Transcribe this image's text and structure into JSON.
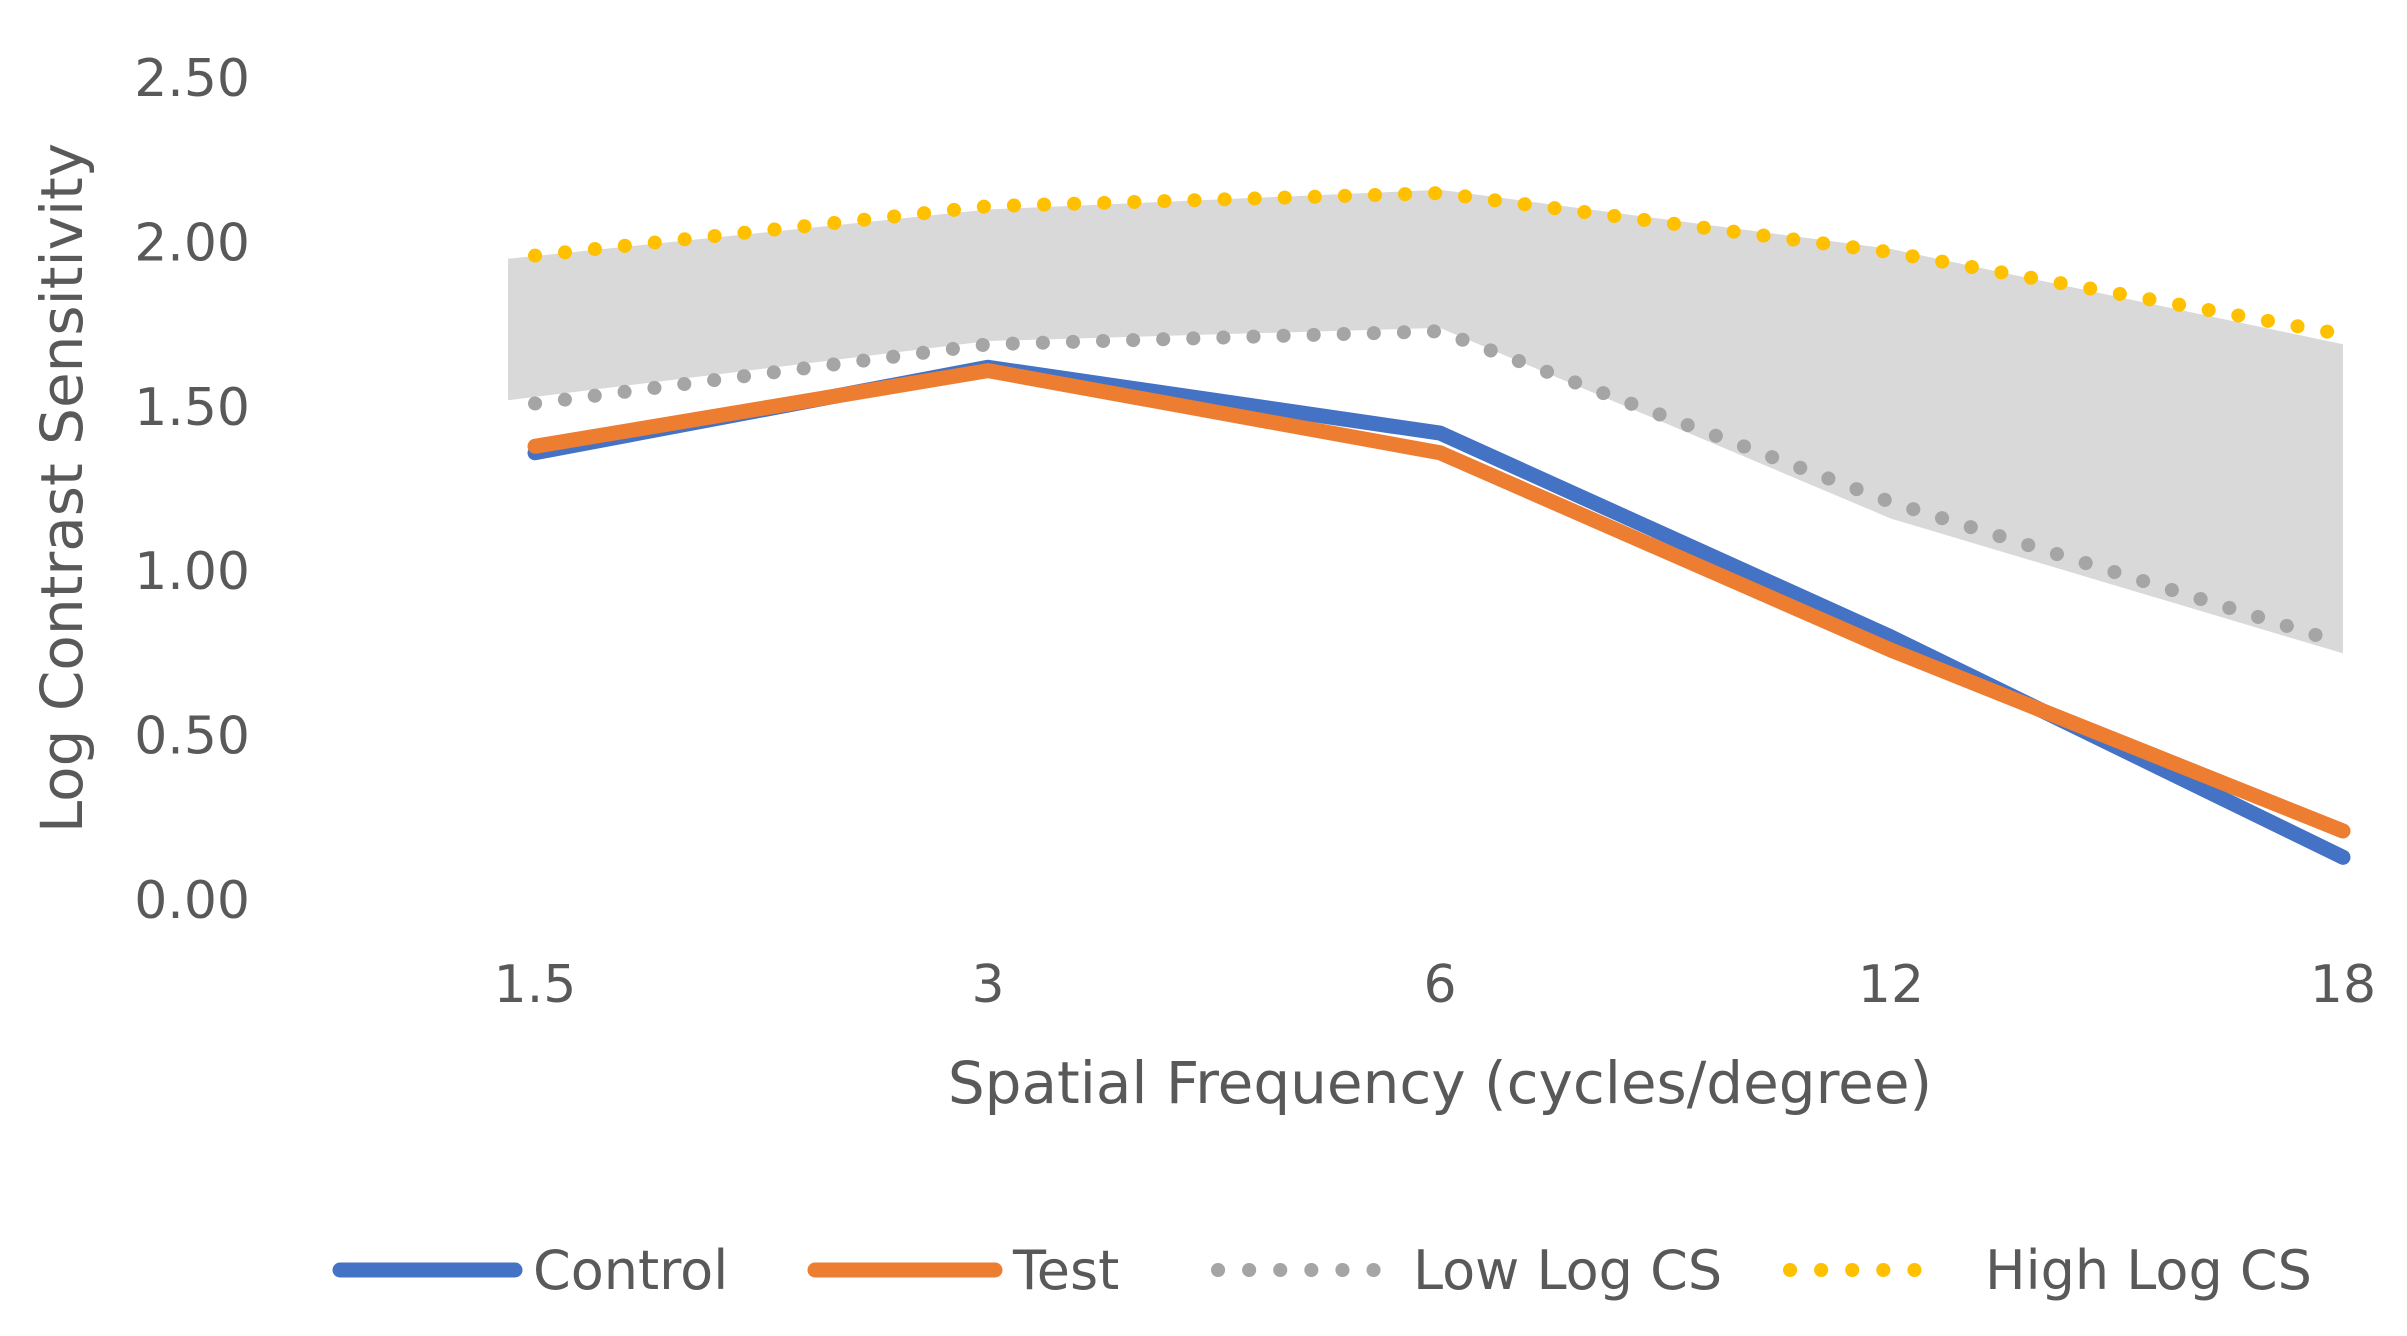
{
  "chart_data": {
    "type": "line",
    "title": "",
    "xlabel": "Spatial Frequency (cycles/degree)",
    "ylabel": "Log Contrast Sensitivity",
    "categories": [
      "1.5",
      "3",
      "6",
      "12",
      "18"
    ],
    "ylim": [
      0,
      2.5
    ],
    "yticks": [
      "0.00",
      "0.50",
      "1.00",
      "1.50",
      "2.00",
      "2.50"
    ],
    "grid": false,
    "legend_position": "bottom",
    "shaded_band": {
      "lower": [
        1.52,
        1.7,
        1.74,
        1.16,
        0.75
      ],
      "upper": [
        1.95,
        2.1,
        2.16,
        1.98,
        1.69
      ],
      "color": "#d9d9d9"
    },
    "series": [
      {
        "name": "Control",
        "values": [
          1.36,
          1.62,
          1.42,
          0.8,
          0.13
        ],
        "color": "#4472c4",
        "style": "solid"
      },
      {
        "name": "Test",
        "values": [
          1.38,
          1.61,
          1.36,
          0.76,
          0.21
        ],
        "color": "#ed7d31",
        "style": "solid"
      },
      {
        "name": "Low Log CS",
        "values": [
          1.51,
          1.69,
          1.73,
          1.21,
          0.78
        ],
        "color": "#a5a5a5",
        "style": "dotted"
      },
      {
        "name": "High Log CS",
        "values": [
          1.96,
          2.11,
          2.15,
          1.97,
          1.72
        ],
        "color": "#ffc000",
        "style": "dotted"
      }
    ]
  }
}
